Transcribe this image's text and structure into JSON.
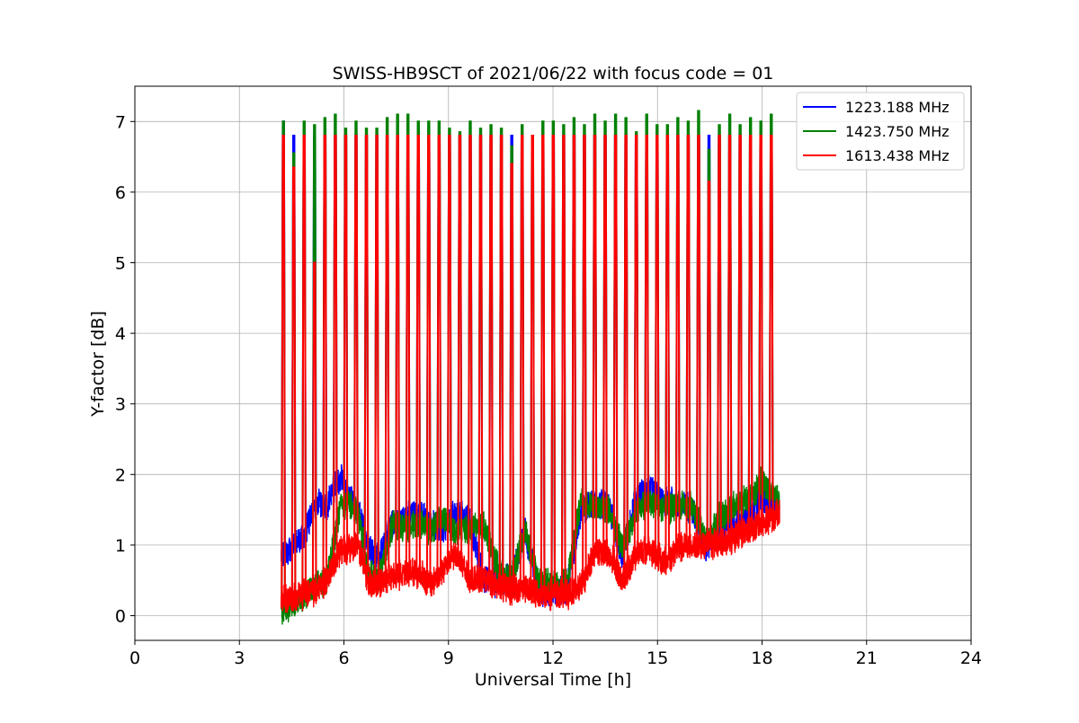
{
  "chart_data": {
    "type": "line",
    "title": "SWISS-HB9SCT of 2021/06/22 with focus code = 01",
    "xlabel": "Universal Time [h]",
    "ylabel": "Y-factor [dB]",
    "xlim": [
      0,
      24
    ],
    "ylim": [
      -0.35,
      7.5
    ],
    "xticks": [
      "0",
      "3",
      "6",
      "9",
      "12",
      "15",
      "18",
      "21",
      "24"
    ],
    "yticks": [
      "0",
      "1",
      "2",
      "3",
      "4",
      "5",
      "6",
      "7"
    ],
    "grid": true,
    "legend_position": "top-right",
    "series": [
      {
        "name": "1223.188 MHz",
        "color": "#0000ff",
        "baseline_x": [
          4.2,
          4.5,
          4.8,
          5.2,
          5.5,
          5.9,
          6.1,
          6.4,
          6.7,
          7.0,
          7.4,
          7.8,
          8.2,
          8.5,
          8.8,
          9.2,
          9.6,
          10.0,
          10.4,
          10.8,
          11.2,
          11.6,
          12.0,
          12.4,
          12.8,
          13.2,
          13.6,
          14.0,
          14.4,
          14.8,
          15.2,
          15.6,
          16.0,
          16.4,
          16.8,
          17.2,
          17.6,
          18.0,
          18.5
        ],
        "baseline_y": [
          0.85,
          1.0,
          1.1,
          1.6,
          1.55,
          2.0,
          1.7,
          1.5,
          1.0,
          0.8,
          1.3,
          1.4,
          1.45,
          1.3,
          1.2,
          1.45,
          1.35,
          0.55,
          0.45,
          0.55,
          1.2,
          0.35,
          0.35,
          0.35,
          1.5,
          1.6,
          1.55,
          0.85,
          1.7,
          1.8,
          1.6,
          1.6,
          1.5,
          0.95,
          1.25,
          1.35,
          1.4,
          1.7,
          1.5
        ],
        "peaks": [
          7.0,
          6.8,
          6.8,
          6.8,
          6.8,
          6.8,
          6.8,
          6.8,
          6.8,
          6.8,
          6.8,
          6.8,
          6.8,
          6.8,
          6.8,
          6.8,
          6.8,
          6.8,
          6.8,
          6.8,
          6.8,
          6.8,
          6.8,
          6.8,
          6.8,
          6.8,
          6.8,
          6.8,
          6.8,
          6.8,
          6.8,
          6.8,
          6.8,
          6.8,
          6.8,
          6.8,
          6.8,
          6.8,
          6.8,
          6.8,
          6.8,
          6.8,
          6.8,
          6.8,
          6.8,
          6.8,
          6.8,
          6.8
        ]
      },
      {
        "name": "1423.750 MHz",
        "color": "#008000",
        "baseline_x": [
          4.2,
          4.5,
          4.8,
          5.2,
          5.5,
          5.9,
          6.1,
          6.4,
          6.7,
          7.0,
          7.4,
          7.8,
          8.2,
          8.5,
          8.8,
          9.2,
          9.6,
          10.0,
          10.4,
          10.8,
          11.2,
          11.6,
          12.0,
          12.4,
          12.8,
          13.2,
          13.6,
          14.0,
          14.4,
          14.8,
          15.2,
          15.6,
          16.0,
          16.4,
          16.8,
          17.2,
          17.6,
          18.0,
          18.5
        ],
        "baseline_y": [
          0.1,
          0.15,
          0.25,
          0.45,
          0.5,
          1.55,
          1.6,
          1.45,
          0.6,
          0.5,
          1.3,
          1.25,
          1.3,
          1.2,
          1.4,
          1.2,
          1.2,
          1.3,
          0.7,
          0.5,
          1.2,
          0.45,
          0.45,
          0.5,
          1.6,
          1.55,
          1.5,
          0.95,
          1.5,
          1.6,
          1.5,
          1.55,
          1.55,
          1.05,
          1.4,
          1.55,
          1.65,
          1.9,
          1.6
        ],
        "peaks": [
          7.0,
          6.55,
          7.0,
          6.95,
          7.05,
          7.1,
          6.9,
          7.0,
          6.9,
          6.9,
          7.05,
          7.1,
          7.1,
          7.0,
          7.0,
          7.0,
          6.9,
          6.85,
          7.0,
          6.9,
          6.95,
          6.9,
          6.65,
          6.95,
          6.8,
          7.0,
          7.0,
          6.95,
          7.05,
          6.95,
          7.1,
          7.0,
          7.1,
          7.05,
          6.85,
          7.1,
          6.95,
          6.95,
          7.05,
          7.0,
          7.15,
          6.6,
          6.95,
          7.1,
          6.95,
          7.05,
          7.0,
          7.1
        ]
      },
      {
        "name": "1613.438 MHz",
        "color": "#ff0000",
        "baseline_x": [
          4.2,
          4.5,
          4.8,
          5.2,
          5.5,
          5.9,
          6.1,
          6.4,
          6.7,
          7.0,
          7.4,
          7.8,
          8.2,
          8.5,
          8.8,
          9.2,
          9.6,
          10.0,
          10.4,
          10.8,
          11.2,
          11.6,
          12.0,
          12.4,
          12.8,
          13.2,
          13.6,
          14.0,
          14.4,
          14.8,
          15.2,
          15.6,
          16.0,
          16.4,
          16.8,
          17.2,
          17.6,
          18.0,
          18.5
        ],
        "baseline_y": [
          0.25,
          0.25,
          0.3,
          0.35,
          0.5,
          0.9,
          0.95,
          1.0,
          0.5,
          0.45,
          0.55,
          0.6,
          0.6,
          0.45,
          0.6,
          0.9,
          0.55,
          0.5,
          0.45,
          0.35,
          0.4,
          0.3,
          0.3,
          0.3,
          0.4,
          0.9,
          0.9,
          0.5,
          0.9,
          0.95,
          0.75,
          0.95,
          1.0,
          1.0,
          1.05,
          1.1,
          1.2,
          1.3,
          1.45
        ],
        "peaks": [
          6.8,
          6.35,
          6.8,
          5.0,
          6.8,
          6.8,
          6.8,
          6.8,
          6.8,
          6.8,
          6.8,
          6.8,
          6.8,
          6.8,
          6.8,
          6.8,
          6.8,
          6.8,
          6.8,
          6.8,
          6.8,
          6.8,
          6.4,
          6.8,
          6.8,
          6.8,
          6.8,
          6.8,
          6.8,
          6.8,
          6.8,
          6.8,
          6.8,
          6.8,
          6.8,
          6.8,
          6.8,
          6.8,
          6.8,
          6.8,
          6.8,
          6.15,
          6.8,
          6.8,
          6.8,
          6.8,
          6.8,
          6.8
        ]
      }
    ]
  }
}
